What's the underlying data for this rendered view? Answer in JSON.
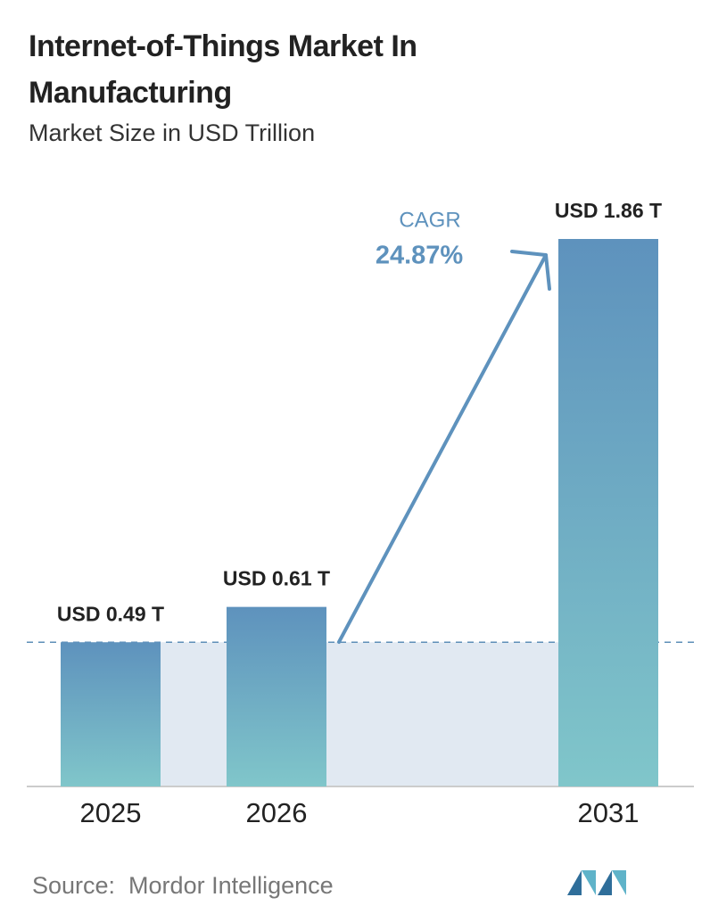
{
  "chart_data": {
    "type": "bar",
    "title": "Internet-of-Things Market In Manufacturing",
    "subtitle": "Market Size in USD Trillion",
    "categories": [
      "2025",
      "2026",
      "2031"
    ],
    "values": [
      0.49,
      0.61,
      1.86
    ],
    "value_labels": [
      "USD 0.49 T",
      "USD 0.61 T",
      "USD 1.86 T"
    ],
    "annotation_label": "CAGR",
    "annotation_value": "24.87%",
    "source": "Source:  Mordor Intelligence",
    "colors": {
      "top": "#5e92bd",
      "bottom": "#80c6ca"
    }
  }
}
